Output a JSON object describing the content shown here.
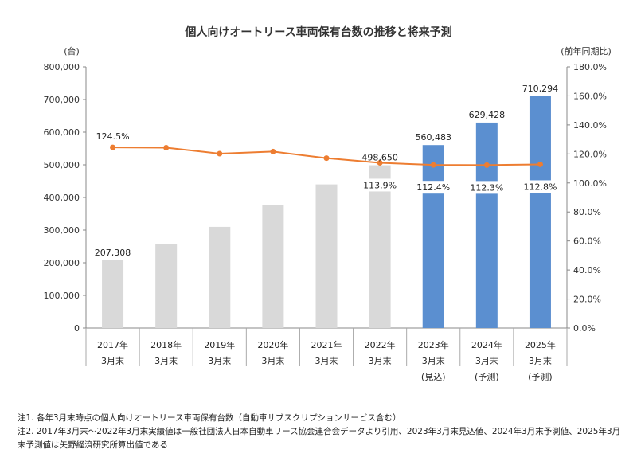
{
  "chart_data": {
    "type": "bar",
    "title": "個人向けオートリース車両保有台数の推移と将来予測",
    "left_axis_unit": "(台)",
    "right_axis_unit": "(前年同期比)",
    "left_ylim": [
      0,
      800000
    ],
    "right_ylim": [
      0,
      180
    ],
    "left_ticks": [
      "0",
      "100,000",
      "200,000",
      "300,000",
      "400,000",
      "500,000",
      "600,000",
      "700,000",
      "800,000"
    ],
    "right_ticks": [
      "0.0%",
      "20.0%",
      "40.0%",
      "60.0%",
      "80.0%",
      "100.0%",
      "120.0%",
      "140.0%",
      "160.0%",
      "180.0%"
    ],
    "categories": [
      [
        "2017年",
        "3月末",
        ""
      ],
      [
        "2018年",
        "3月末",
        ""
      ],
      [
        "2019年",
        "3月末",
        ""
      ],
      [
        "2020年",
        "3月末",
        ""
      ],
      [
        "2021年",
        "3月末",
        ""
      ],
      [
        "2022年",
        "3月末",
        ""
      ],
      [
        "2023年",
        "3月末",
        "(見込)"
      ],
      [
        "2024年",
        "3月末",
        "(予測)"
      ],
      [
        "2025年",
        "3月末",
        "(予測)"
      ]
    ],
    "series": [
      {
        "kind": "bar",
        "values": [
          207308,
          258000,
          310000,
          376000,
          440000,
          498650,
          560483,
          629428,
          710294
        ],
        "colors": [
          "#d9d9d9",
          "#d9d9d9",
          "#d9d9d9",
          "#d9d9d9",
          "#d9d9d9",
          "#d9d9d9",
          "#5b8fd0",
          "#5b8fd0",
          "#5b8fd0"
        ],
        "labels": [
          "207,308",
          "",
          "",
          "",
          "",
          "498,650",
          "560,483",
          "629,428",
          "710,294"
        ]
      },
      {
        "kind": "line",
        "axis": "right",
        "color": "#ed7d31",
        "values": [
          124.5,
          124.3,
          120.2,
          121.6,
          117.1,
          113.9,
          112.4,
          112.3,
          112.8
        ],
        "labels": [
          "124.5%",
          "",
          "",
          "",
          "",
          "113.9%",
          "112.4%",
          "112.3%",
          "112.8%"
        ]
      }
    ],
    "grid": false,
    "legend": "none"
  },
  "notes": [
    "注1. 各年3月末時点の個人向けオートリース車両保有台数（自動車サブスクリプションサービス含む）",
    "注2. 2017年3月末～2022年3月末実績値は一般社団法人日本自動車リース協会連合会データより引用、2023年3月末見込値、2024年3月末予測値、2025年3月末予測値は矢野経済研究所算出値である"
  ]
}
